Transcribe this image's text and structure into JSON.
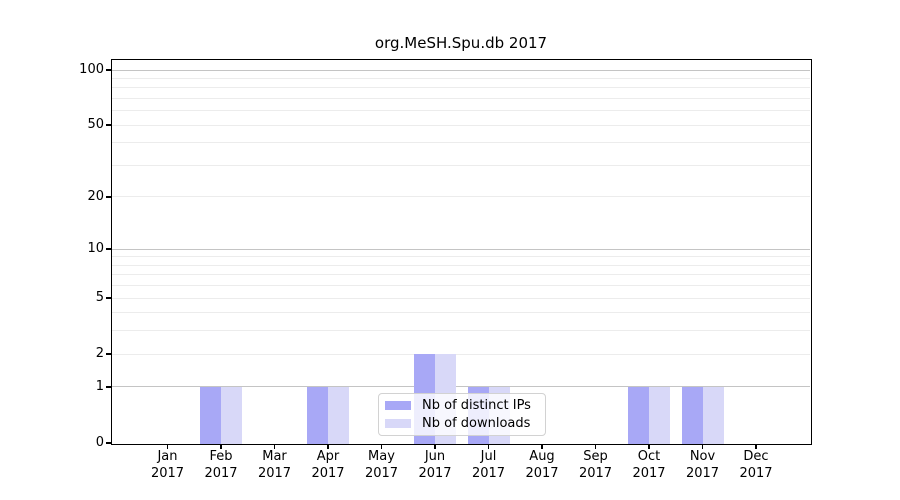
{
  "chart_data": {
    "type": "bar",
    "title": "org.MeSH.Spu.db 2017",
    "categories": [
      "Jan",
      "Feb",
      "Mar",
      "Apr",
      "May",
      "Jun",
      "Jul",
      "Aug",
      "Sep",
      "Oct",
      "Nov",
      "Dec"
    ],
    "category_year": "2017",
    "series": [
      {
        "name": "Nb of distinct IPs",
        "color": "#a8a8f6",
        "values": [
          0,
          1,
          0,
          1,
          0,
          2,
          1,
          0,
          0,
          1,
          1,
          0
        ]
      },
      {
        "name": "Nb of downloads",
        "color": "#d8d8f8",
        "values": [
          0,
          1,
          0,
          1,
          0,
          2,
          1,
          0,
          0,
          1,
          1,
          0
        ]
      }
    ],
    "yscale": "log1p",
    "ylim": [
      0,
      113
    ],
    "ytick_values": [
      0,
      1,
      2,
      5,
      10,
      20,
      50,
      100
    ],
    "major_gridline_values": [
      1,
      10,
      100
    ],
    "minor_gridline_values": [
      2,
      3,
      4,
      5,
      6,
      7,
      8,
      9,
      20,
      30,
      40,
      50,
      60,
      70,
      80,
      90
    ],
    "legend_position": "lower center",
    "grid": true
  },
  "colors": {
    "background": "#ffffff",
    "axis": "#000000",
    "text": "#000000",
    "major_grid": "#c4c4c4",
    "minor_grid": "#ececec",
    "legend_border": "#d2d2d2"
  }
}
